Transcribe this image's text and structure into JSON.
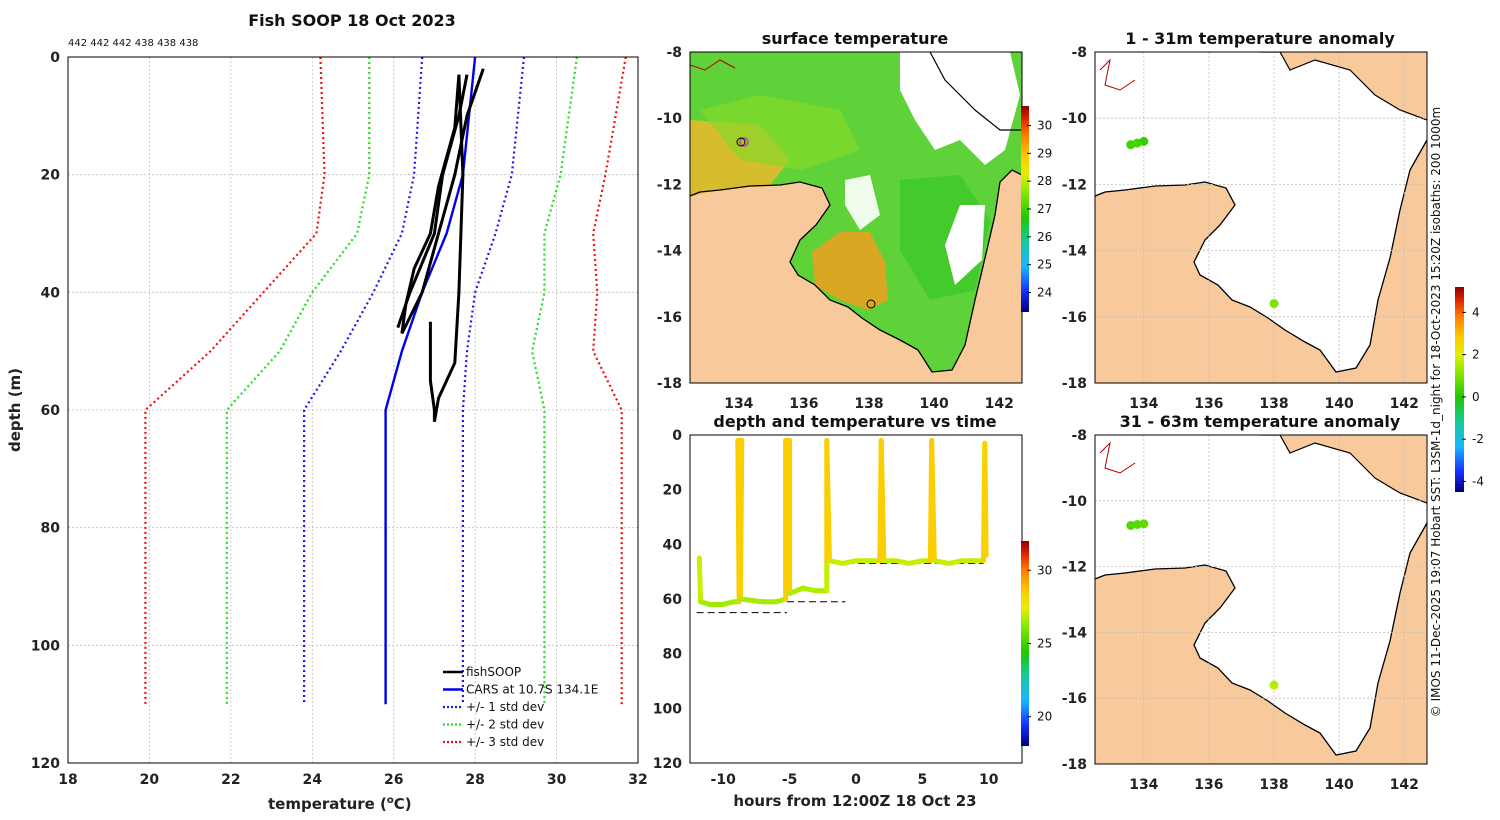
{
  "colors": {
    "land": "#f8c99b",
    "black": "#000000",
    "cars": "#0000ee",
    "sd1": "#1a1ae6",
    "sd2": "#22dd22",
    "sd3": "#ee1111"
  },
  "profile": {
    "title": "Fish SOOP 18 Oct 2023",
    "header_counts": "442 442 442 438 438 438",
    "xlabel": "temperature (",
    "xlabel_sup": "o",
    "xlabel_end": "C)",
    "ylabel": "depth (m)"
  },
  "sst": {
    "title": "surface temperature"
  },
  "anom1": {
    "title": "1 - 31m temperature anomaly"
  },
  "anom2": {
    "title": "31 - 63m temperature anomaly"
  },
  "timeplot": {
    "title": "depth and temperature vs time",
    "xlabel": "hours from 12:00Z 18 Oct 23"
  },
  "side_note": "© IMOS 11-Dec-2025 19:07 Hobart SST: L3SM-1d_night for 18-Oct-2023 15:20Z isobaths: 200  1000m",
  "colorbars": {
    "sst": {
      "ticks": [
        24,
        25,
        26,
        27,
        28,
        29,
        30
      ],
      "range": [
        23.3,
        30.7
      ]
    },
    "anom": {
      "ticks": [
        -4,
        -2,
        0,
        2,
        4
      ],
      "range": [
        -4.5,
        5.2
      ]
    },
    "time": {
      "ticks": [
        20,
        25,
        30
      ],
      "range": [
        18,
        32
      ]
    }
  },
  "chart_data": [
    {
      "type": "line",
      "name": "profile",
      "xlim": [
        18,
        32
      ],
      "ylim": [
        120,
        0
      ],
      "xticks": [
        18,
        20,
        22,
        24,
        26,
        28,
        30,
        32
      ],
      "yticks": [
        0,
        20,
        40,
        60,
        80,
        100,
        120
      ],
      "legend": [
        "fishSOOP",
        "CARS at 10.7S 134.1E",
        "+/- 1 std dev",
        "+/- 2 std dev",
        "+/- 3 std dev"
      ],
      "series": [
        {
          "name": "CARS",
          "depth": [
            0,
            20,
            30,
            40,
            50,
            60,
            110
          ],
          "temp": [
            28.0,
            27.7,
            27.3,
            26.7,
            26.2,
            25.8,
            25.8
          ]
        },
        {
          "name": "+1 std",
          "depth": [
            0,
            20,
            30,
            40,
            50,
            60,
            110
          ],
          "temp": [
            29.2,
            28.9,
            28.5,
            28.0,
            27.8,
            27.7,
            27.7
          ]
        },
        {
          "name": "-1 std",
          "depth": [
            0,
            20,
            30,
            40,
            50,
            60,
            110
          ],
          "temp": [
            26.7,
            26.5,
            26.2,
            25.5,
            24.7,
            23.8,
            23.8
          ]
        },
        {
          "name": "+2 std",
          "depth": [
            0,
            20,
            30,
            40,
            50,
            60,
            110
          ],
          "temp": [
            30.5,
            30.1,
            29.7,
            29.7,
            29.4,
            29.7,
            29.7
          ]
        },
        {
          "name": "-2 std",
          "depth": [
            0,
            20,
            30,
            40,
            50,
            60,
            110
          ],
          "temp": [
            25.4,
            25.4,
            25.1,
            24.0,
            23.2,
            21.9,
            21.9
          ]
        },
        {
          "name": "+3 std",
          "depth": [
            0,
            20,
            30,
            40,
            50,
            60,
            110
          ],
          "temp": [
            31.7,
            31.2,
            30.9,
            31.0,
            30.9,
            31.6,
            31.6
          ]
        },
        {
          "name": "-3 std",
          "depth": [
            0,
            20,
            30,
            40,
            50,
            60,
            110
          ],
          "temp": [
            24.2,
            24.3,
            24.1,
            22.8,
            21.5,
            19.9,
            19.9
          ]
        },
        {
          "name": "fishSOOP a",
          "depth": [
            2,
            10,
            20,
            30,
            40,
            47
          ],
          "temp": [
            28.2,
            27.8,
            27.5,
            27.1,
            26.7,
            26.2
          ]
        },
        {
          "name": "fishSOOP b",
          "depth": [
            3,
            10,
            20,
            30,
            35,
            40,
            46
          ],
          "temp": [
            27.8,
            27.6,
            27.2,
            27.0,
            26.7,
            26.4,
            26.1
          ]
        },
        {
          "name": "fishSOOP c",
          "depth": [
            3,
            12,
            22,
            30,
            36,
            42,
            47
          ],
          "temp": [
            27.6,
            27.5,
            27.1,
            26.9,
            26.5,
            26.3,
            26.2
          ]
        },
        {
          "name": "fishSOOP d",
          "depth": [
            45,
            50,
            55,
            60,
            62
          ],
          "temp": [
            26.9,
            26.9,
            26.9,
            27.0,
            27.0
          ]
        },
        {
          "name": "fishSOOP e",
          "depth": [
            3,
            20,
            40,
            52,
            58,
            62
          ],
          "temp": [
            27.6,
            27.7,
            27.6,
            27.5,
            27.1,
            27.0
          ]
        }
      ]
    },
    {
      "type": "heatmap",
      "name": "surface temperature",
      "xlim": [
        132.5,
        142.7
      ],
      "ylim": [
        -18,
        -8
      ],
      "xticks": [
        134,
        136,
        138,
        140,
        142
      ],
      "yticks": [
        -8,
        -10,
        -12,
        -14,
        -16,
        -18
      ]
    },
    {
      "type": "scatter",
      "name": "1 - 31m temperature anomaly",
      "xlim": [
        132.5,
        142.7
      ],
      "ylim": [
        -18,
        -8
      ],
      "xticks": [
        134,
        136,
        138,
        140,
        142
      ],
      "yticks": [
        -8,
        -10,
        -12,
        -14,
        -16,
        -18
      ],
      "points": [
        {
          "lon": 133.6,
          "lat": -10.8,
          "anom": 0.3
        },
        {
          "lon": 133.8,
          "lat": -10.75,
          "anom": 0.4
        },
        {
          "lon": 134.0,
          "lat": -10.7,
          "anom": 0.2
        },
        {
          "lon": 138.0,
          "lat": -15.6,
          "anom": 1.0
        }
      ]
    },
    {
      "type": "scatter",
      "name": "31 - 63m temperature anomaly",
      "xlim": [
        132.5,
        142.7
      ],
      "ylim": [
        -18,
        -8
      ],
      "xticks": [
        134,
        136,
        138,
        140,
        142
      ],
      "yticks": [
        -8,
        -10,
        -12,
        -14,
        -16,
        -18
      ],
      "points": [
        {
          "lon": 133.6,
          "lat": -10.75,
          "anom": 0.5
        },
        {
          "lon": 133.8,
          "lat": -10.72,
          "anom": 0.6
        },
        {
          "lon": 134.0,
          "lat": -10.7,
          "anom": 0.7
        },
        {
          "lon": 138.0,
          "lat": -15.6,
          "anom": 1.6
        }
      ]
    },
    {
      "type": "scatter",
      "name": "depth and temperature vs time",
      "xlim": [
        -12.5,
        12.5
      ],
      "ylim": [
        120,
        0
      ],
      "xticks": [
        -10,
        -5,
        0,
        5,
        10
      ],
      "yticks": [
        0,
        20,
        40,
        60,
        80,
        100,
        120
      ],
      "bottom_depth_lines": [
        {
          "t0": -12,
          "t1": -5.2,
          "depth": 65
        },
        {
          "t0": -5.2,
          "t1": -0.8,
          "depth": 61
        },
        {
          "t0": -1.5,
          "t1": 9.6,
          "depth": 47
        }
      ],
      "trace": [
        [
          -11.8,
          45
        ],
        [
          -11.7,
          61
        ],
        [
          -11.0,
          62
        ],
        [
          -10.0,
          62
        ],
        [
          -9.2,
          61
        ],
        [
          -8.8,
          61
        ],
        [
          -8.9,
          2
        ],
        [
          -8.6,
          2
        ],
        [
          -8.7,
          60
        ],
        [
          -7.0,
          61
        ],
        [
          -6.0,
          61
        ],
        [
          -5.3,
          60
        ],
        [
          -5.3,
          2
        ],
        [
          -5.0,
          2
        ],
        [
          -5.0,
          58
        ],
        [
          -4.0,
          56
        ],
        [
          -3.0,
          57
        ],
        [
          -2.2,
          57
        ],
        [
          -2.2,
          46
        ],
        [
          -2.2,
          2
        ],
        [
          -2.0,
          46
        ],
        [
          -1.0,
          47
        ],
        [
          0.0,
          46
        ],
        [
          1.0,
          46
        ],
        [
          1.8,
          46
        ],
        [
          1.9,
          2
        ],
        [
          2.1,
          46
        ],
        [
          3.0,
          46
        ],
        [
          4.0,
          47
        ],
        [
          5.0,
          46
        ],
        [
          5.6,
          46
        ],
        [
          5.7,
          2
        ],
        [
          5.9,
          46
        ],
        [
          7.0,
          47
        ],
        [
          8.0,
          46
        ],
        [
          9.0,
          46
        ],
        [
          9.6,
          46
        ],
        [
          9.7,
          3
        ],
        [
          9.8,
          44
        ]
      ],
      "temp_range": [
        26.5,
        28.5
      ]
    }
  ]
}
